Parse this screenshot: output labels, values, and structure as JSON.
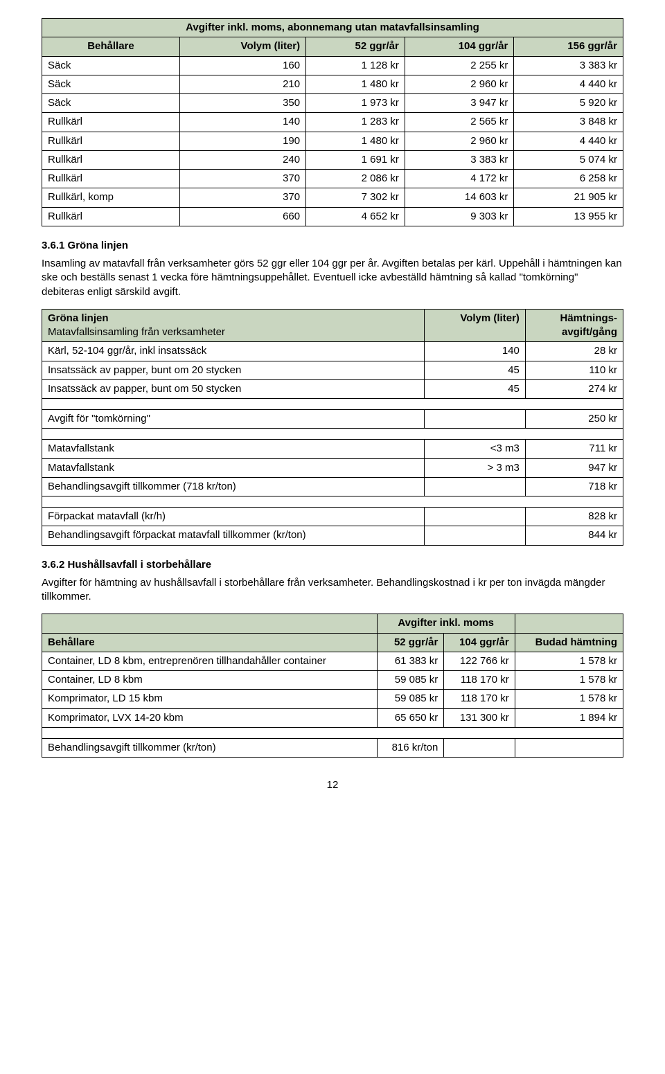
{
  "table1": {
    "title": "Avgifter inkl. moms, abonnemang utan matavfallsinsamling",
    "headers": [
      "Behållare",
      "Volym (liter)",
      "52 ggr/år",
      "104 ggr/år",
      "156 ggr/år"
    ],
    "rows": [
      [
        "Säck",
        "160",
        "1 128 kr",
        "2 255 kr",
        "3 383 kr"
      ],
      [
        "Säck",
        "210",
        "1 480 kr",
        "2 960 kr",
        "4 440 kr"
      ],
      [
        "Säck",
        "350",
        "1 973 kr",
        "3 947 kr",
        "5 920 kr"
      ],
      [
        "Rullkärl",
        "140",
        "1 283 kr",
        "2 565 kr",
        "3 848 kr"
      ],
      [
        "Rullkärl",
        "190",
        "1 480 kr",
        "2 960 kr",
        "4 440 kr"
      ],
      [
        "Rullkärl",
        "240",
        "1 691 kr",
        "3 383 kr",
        "5 074 kr"
      ],
      [
        "Rullkärl",
        "370",
        "2 086 kr",
        "4 172 kr",
        "6 258 kr"
      ],
      [
        "Rullkärl, komp",
        "370",
        "7 302 kr",
        "14 603 kr",
        "21 905 kr"
      ],
      [
        "Rullkärl",
        "660",
        "4 652 kr",
        "9 303 kr",
        "13 955 kr"
      ]
    ]
  },
  "section361": {
    "heading": "3.6.1 Gröna linjen",
    "para": "Insamling av matavfall från verksamheter görs 52 ggr eller 104 ggr per år. Avgiften betalas per kärl. Uppehåll i hämtningen kan ske och beställs senast 1 vecka före hämtningsuppehållet. Eventuell icke avbeställd hämtning så kallad \"tomkörning\" debiteras enligt särskild avgift."
  },
  "table2": {
    "head_l1": "Gröna linjen",
    "head_l2": "Matavfallsinsamling från verksamheter",
    "head_c": "Volym (liter)",
    "head_r1": "Hämtnings-",
    "head_r2": "avgift/gång",
    "blockA": [
      [
        "Kärl, 52-104 ggr/år, inkl insatssäck",
        "140",
        "28 kr"
      ],
      [
        "Insatssäck av papper, bunt om 20 stycken",
        "45",
        "110 kr"
      ],
      [
        "Insatssäck av papper, bunt om 50 stycken",
        "45",
        "274 kr"
      ]
    ],
    "tomkorning_label": "Avgift för \"tomkörning\"",
    "tomkorning_val": "250 kr",
    "blockB": [
      [
        "Matavfallstank",
        "<3 m3",
        "711 kr"
      ],
      [
        "Matavfallstank",
        "> 3 m3",
        "947 kr"
      ],
      [
        "Behandlingsavgift tillkommer (718 kr/ton)",
        "",
        "718 kr"
      ]
    ],
    "blockC": [
      [
        "Förpackat matavfall (kr/h)",
        "",
        "828 kr"
      ],
      [
        "Behandlingsavgift förpackat matavfall tillkommer (kr/ton)",
        "",
        "844 kr"
      ]
    ]
  },
  "section362": {
    "heading": "3.6.2 Hushållsavfall i storbehållare",
    "para": "Avgifter för hämtning av hushållsavfall i storbehållare från verksamheter. Behandlingskostnad i kr per ton invägda mängder tillkommer."
  },
  "table3": {
    "title": "Avgifter inkl. moms",
    "headers": [
      "Behållare",
      "52 ggr/år",
      "104 ggr/år",
      "Budad hämtning"
    ],
    "rows": [
      [
        "Container, LD 8 kbm, entreprenören tillhandahåller container",
        "61 383 kr",
        "122 766 kr",
        "1 578 kr"
      ],
      [
        "Container, LD 8 kbm",
        "59 085 kr",
        "118 170 kr",
        "1 578 kr"
      ],
      [
        "Komprimator, LD 15 kbm",
        "59 085 kr",
        "118 170 kr",
        "1 578 kr"
      ],
      [
        "Komprimator, LVX 14-20 kbm",
        "65 650 kr",
        "131 300 kr",
        "1 894 kr"
      ]
    ],
    "footer_label": "Behandlingsavgift tillkommer (kr/ton)",
    "footer_val": "816 kr/ton"
  },
  "page_number": "12"
}
